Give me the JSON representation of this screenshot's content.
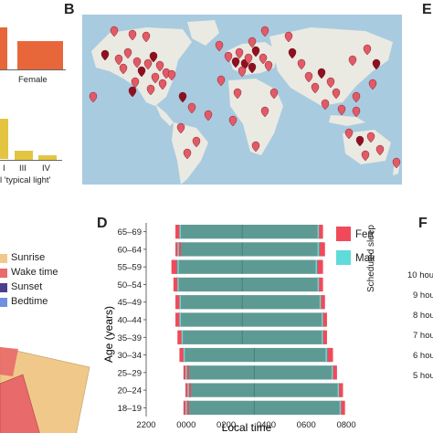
{
  "panels": {
    "A_top": {
      "label_female": "Female"
    },
    "A_mid": {
      "labels": [
        "III",
        "IV"
      ],
      "partial_label": "l 'typical light'"
    },
    "B": {
      "letter": "B"
    },
    "E": {
      "letter": "E"
    },
    "C": {
      "legend": [
        "Sunrise",
        "Wake time",
        "Sunset",
        "Bedtime"
      ]
    },
    "D": {
      "letter": "D"
    },
    "F": {
      "letter": "F",
      "ylabel": "Scheduled sleep",
      "ticks": [
        "10 hou",
        "9 hou",
        "8 hou",
        "7 hou",
        "6 hou",
        "5 hou"
      ]
    }
  },
  "colors": {
    "orange": "#e8673a",
    "yellow": "#e3c541",
    "sunrise": "#f0c98a",
    "wake": "#e86a6a",
    "sunset": "#4a3f8f",
    "bedtime": "#6f8fe0",
    "bar": "#5e9a94",
    "female": "#f04a5a",
    "male": "#5fdbd9",
    "ocean": "#a9cbe0",
    "land": "#eaeae2"
  },
  "chart_data": {
    "type": "bar",
    "xlabel": "Local time",
    "ylabel": "Age (years)",
    "x_ticks": [
      "2200",
      "0000",
      "0200",
      "0400",
      "0600",
      "0800"
    ],
    "legend": [
      "Female",
      "Male"
    ],
    "categories": [
      "65–69",
      "60–64",
      "55–59",
      "50–54",
      "45–49",
      "40–44",
      "35–39",
      "30–34",
      "25–29",
      "20–24",
      "18–19"
    ],
    "series": [
      {
        "name": "Female",
        "bed": [
          23.6,
          23.6,
          23.4,
          23.5,
          23.6,
          23.6,
          23.7,
          23.8,
          24.0,
          24.1,
          24.0
        ],
        "wake": [
          6.7,
          6.8,
          6.7,
          6.7,
          6.8,
          6.9,
          6.9,
          7.2,
          7.4,
          7.7,
          7.8
        ]
      },
      {
        "name": "Male",
        "bed": [
          23.7,
          23.6,
          23.6,
          23.6,
          23.7,
          23.7,
          23.8,
          23.9,
          24.0,
          24.1,
          24.0
        ],
        "wake": [
          6.6,
          6.6,
          6.5,
          6.6,
          6.7,
          6.8,
          6.8,
          7.0,
          7.3,
          7.6,
          7.7
        ]
      }
    ]
  }
}
